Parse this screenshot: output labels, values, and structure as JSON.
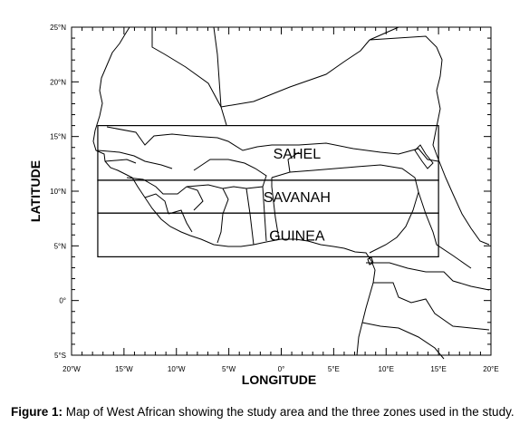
{
  "map": {
    "x_axis_title": "LONGITUDE",
    "y_axis_title": "LATITUDE",
    "x_ticks": [
      {
        "lon": -20,
        "label": "20°W"
      },
      {
        "lon": -15,
        "label": "15°W"
      },
      {
        "lon": -10,
        "label": "10°W"
      },
      {
        "lon": -5,
        "label": "5°W"
      },
      {
        "lon": 0,
        "label": "0°"
      },
      {
        "lon": 5,
        "label": "5°E"
      },
      {
        "lon": 10,
        "label": "10°E"
      },
      {
        "lon": 15,
        "label": "15°E"
      },
      {
        "lon": 20,
        "label": "20°E"
      }
    ],
    "y_ticks": [
      {
        "lat": 25,
        "label": "25°N"
      },
      {
        "lat": 20,
        "label": "20°N"
      },
      {
        "lat": 15,
        "label": "15°N"
      },
      {
        "lat": 10,
        "label": "10°N"
      },
      {
        "lat": 5,
        "label": "5°N"
      },
      {
        "lat": 0,
        "label": "0°"
      },
      {
        "lat": -5,
        "label": "5°S"
      }
    ],
    "lon_range": [
      -20,
      20
    ],
    "lat_range": [
      -5,
      25
    ],
    "zones": [
      {
        "name": "SAHEL",
        "lat_min": 11,
        "lat_max": 16,
        "lon_min": -17.5,
        "lon_max": 15
      },
      {
        "name": "SAVANAH",
        "lat_min": 8,
        "lat_max": 11,
        "lon_min": -17.5,
        "lon_max": 15
      },
      {
        "name": "GUINEA",
        "lat_min": 4,
        "lat_max": 8,
        "lon_min": -17.5,
        "lon_max": 15
      }
    ]
  },
  "caption": {
    "prefix": "Figure 1:",
    "text": "Map of West African showing the study area and the three zones used in the study."
  }
}
